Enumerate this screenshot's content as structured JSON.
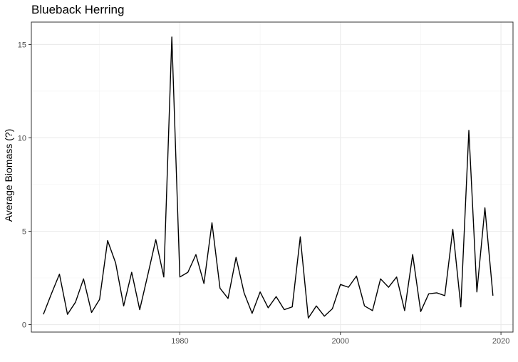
{
  "chart_data": {
    "type": "line",
    "title": "Blueback Herring",
    "xlabel": "",
    "ylabel": "Average Biomass (?)",
    "xlim": [
      1961.5,
      2021.5
    ],
    "ylim": [
      -0.4,
      16.2
    ],
    "x_ticks": [
      1980,
      2000,
      2020
    ],
    "y_ticks": [
      0,
      5,
      10,
      15
    ],
    "grid": true,
    "legend": "none",
    "line_color": "#000000",
    "series": [
      {
        "x": [
          1963,
          1964,
          1965,
          1966,
          1967,
          1968,
          1969,
          1970,
          1971,
          1972,
          1973,
          1974,
          1975,
          1976,
          1977,
          1978,
          1979,
          1980,
          1981,
          1982,
          1983,
          1984,
          1985,
          1986,
          1987,
          1988,
          1989,
          1990,
          1991,
          1992,
          1993,
          1994,
          1995,
          1996,
          1997,
          1998,
          1999,
          2000,
          2001,
          2002,
          2003,
          2004,
          2005,
          2006,
          2007,
          2008,
          2009,
          2010,
          2011,
          2012,
          2013,
          2014,
          2015,
          2016,
          2017,
          2018,
          2019
        ],
        "values": [
          0.55,
          1.65,
          2.7,
          0.55,
          1.2,
          2.45,
          0.65,
          1.35,
          4.5,
          3.3,
          1.0,
          2.8,
          0.8,
          2.65,
          4.55,
          2.55,
          15.4,
          2.55,
          2.8,
          3.75,
          2.2,
          5.45,
          1.95,
          1.4,
          3.6,
          1.7,
          0.6,
          1.75,
          0.9,
          1.5,
          0.8,
          0.95,
          4.7,
          0.35,
          1.0,
          0.45,
          0.85,
          2.15,
          2.0,
          2.6,
          1.0,
          0.75,
          2.45,
          2.0,
          2.55,
          0.75,
          3.75,
          0.7,
          1.65,
          1.7,
          1.55,
          5.1,
          0.95,
          10.4,
          1.75,
          6.25,
          1.55
        ]
      }
    ]
  }
}
